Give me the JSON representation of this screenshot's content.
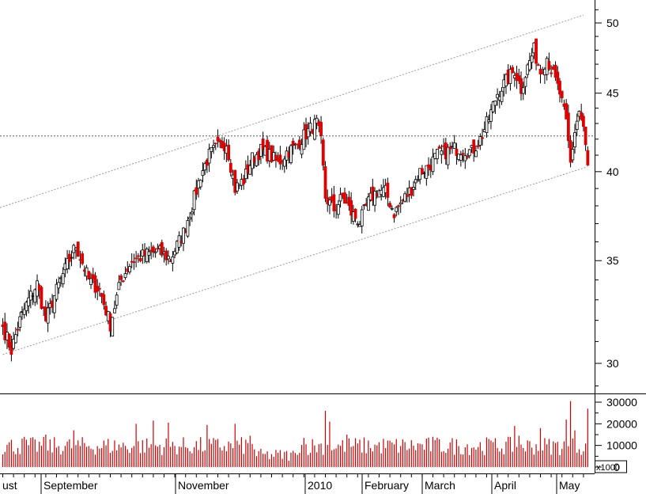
{
  "chart_data": {
    "type": "candlestick",
    "title": "",
    "price_axis": {
      "scale": "log",
      "ticks": [
        30,
        35,
        40,
        45,
        50
      ]
    },
    "volume_axis": {
      "ticks": [
        "0",
        "10000",
        "20000",
        "30000"
      ],
      "unit_label": "x1000"
    },
    "x_axis_labels": [
      "ust",
      "September",
      "November",
      "2010",
      "February",
      "March",
      "April",
      "May"
    ],
    "reference_line": {
      "price": 42.2
    },
    "channel": {
      "upper": {
        "from_price": 37.9,
        "to_price": 50.6
      },
      "lower": {
        "from_price": 30.4,
        "to_price": 40.3
      }
    },
    "colors": {
      "up": "#ffffff",
      "down": "#e00000",
      "wick": "#000000",
      "volume": "#cc0000",
      "grid": "#000000",
      "channel": "#999999"
    },
    "anchors": [
      {
        "i": 0,
        "c": 31.7
      },
      {
        "i": 4,
        "c": 30.6
      },
      {
        "i": 8,
        "c": 32.0
      },
      {
        "i": 12,
        "c": 33.0
      },
      {
        "i": 16,
        "c": 33.8
      },
      {
        "i": 20,
        "c": 32.0
      },
      {
        "i": 24,
        "c": 33.2
      },
      {
        "i": 30,
        "c": 34.8
      },
      {
        "i": 34,
        "c": 35.8
      },
      {
        "i": 40,
        "c": 34.0
      },
      {
        "i": 45,
        "c": 33.5
      },
      {
        "i": 50,
        "c": 31.8
      },
      {
        "i": 55,
        "c": 34.0
      },
      {
        "i": 60,
        "c": 35.0
      },
      {
        "i": 66,
        "c": 35.3
      },
      {
        "i": 72,
        "c": 35.5
      },
      {
        "i": 78,
        "c": 35.1
      },
      {
        "i": 84,
        "c": 36.5
      },
      {
        "i": 88,
        "c": 38.0
      },
      {
        "i": 92,
        "c": 39.8
      },
      {
        "i": 96,
        "c": 41.0
      },
      {
        "i": 100,
        "c": 41.5
      },
      {
        "i": 104,
        "c": 41.8
      },
      {
        "i": 108,
        "c": 39.0
      },
      {
        "i": 112,
        "c": 39.5
      },
      {
        "i": 116,
        "c": 40.8
      },
      {
        "i": 120,
        "c": 41.3
      },
      {
        "i": 124,
        "c": 41.0
      },
      {
        "i": 128,
        "c": 40.5
      },
      {
        "i": 132,
        "c": 41.2
      },
      {
        "i": 136,
        "c": 41.5
      },
      {
        "i": 140,
        "c": 42.2
      },
      {
        "i": 144,
        "c": 42.8
      },
      {
        "i": 146,
        "c": 43.0
      },
      {
        "i": 148,
        "c": 41.8
      },
      {
        "i": 150,
        "c": 38.5
      },
      {
        "i": 154,
        "c": 37.8
      },
      {
        "i": 158,
        "c": 38.5
      },
      {
        "i": 162,
        "c": 37.6
      },
      {
        "i": 166,
        "c": 37.1
      },
      {
        "i": 170,
        "c": 38.2
      },
      {
        "i": 174,
        "c": 38.9
      },
      {
        "i": 178,
        "c": 38.8
      },
      {
        "i": 182,
        "c": 37.6
      },
      {
        "i": 186,
        "c": 38.3
      },
      {
        "i": 190,
        "c": 39.0
      },
      {
        "i": 194,
        "c": 40.0
      },
      {
        "i": 198,
        "c": 40.3
      },
      {
        "i": 202,
        "c": 41.0
      },
      {
        "i": 206,
        "c": 41.2
      },
      {
        "i": 210,
        "c": 41.4
      },
      {
        "i": 214,
        "c": 41.4
      },
      {
        "i": 218,
        "c": 41.2
      },
      {
        "i": 222,
        "c": 42.0
      },
      {
        "i": 226,
        "c": 43.3
      },
      {
        "i": 230,
        "c": 45.0
      },
      {
        "i": 234,
        "c": 45.8
      },
      {
        "i": 238,
        "c": 46.6
      },
      {
        "i": 241,
        "c": 45.3
      },
      {
        "i": 244,
        "c": 46.8
      },
      {
        "i": 247,
        "c": 48.0
      },
      {
        "i": 250,
        "c": 46.5
      },
      {
        "i": 253,
        "c": 47.5
      },
      {
        "i": 256,
        "c": 46.2
      },
      {
        "i": 259,
        "c": 45.0
      },
      {
        "i": 262,
        "c": 43.0
      },
      {
        "i": 264,
        "c": 40.5
      },
      {
        "i": 266,
        "c": 42.5
      },
      {
        "i": 268,
        "c": 43.8
      },
      {
        "i": 270,
        "c": 42.6
      },
      {
        "i": 272,
        "c": 40.4
      }
    ],
    "volume_spikes": [
      {
        "i": 10,
        "v": 14000
      },
      {
        "i": 20,
        "v": 15000
      },
      {
        "i": 33,
        "v": 17000
      },
      {
        "i": 62,
        "v": 20000
      },
      {
        "i": 70,
        "v": 21500
      },
      {
        "i": 77,
        "v": 20500
      },
      {
        "i": 95,
        "v": 19500
      },
      {
        "i": 108,
        "v": 20000
      },
      {
        "i": 115,
        "v": 14500
      },
      {
        "i": 140,
        "v": 13500
      },
      {
        "i": 150,
        "v": 26000
      },
      {
        "i": 152,
        "v": 21000
      },
      {
        "i": 160,
        "v": 15000
      },
      {
        "i": 200,
        "v": 14000
      },
      {
        "i": 226,
        "v": 13000
      },
      {
        "i": 238,
        "v": 19000
      },
      {
        "i": 240,
        "v": 14500
      },
      {
        "i": 250,
        "v": 18000
      },
      {
        "i": 262,
        "v": 22000
      },
      {
        "i": 264,
        "v": 30500
      },
      {
        "i": 266,
        "v": 17000
      },
      {
        "i": 272,
        "v": 27000
      }
    ]
  }
}
